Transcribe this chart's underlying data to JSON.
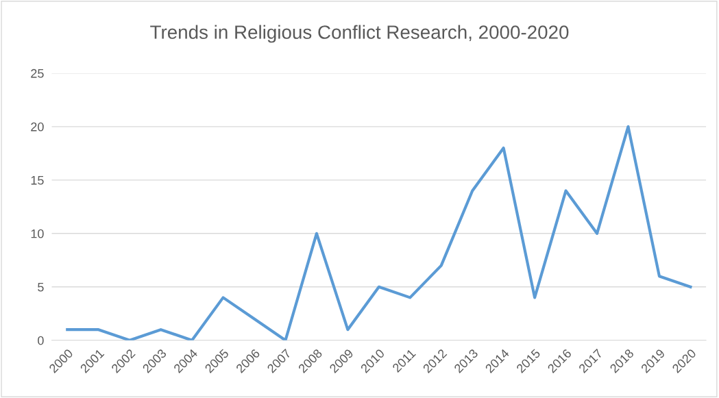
{
  "chart_data": {
    "type": "line",
    "title": "Trends in Religious Conflict Research, 2000-2020",
    "categories": [
      "2000",
      "2001",
      "2002",
      "2003",
      "2004",
      "2005",
      "2006",
      "2007",
      "2008",
      "2009",
      "2010",
      "2011",
      "2012",
      "2013",
      "2014",
      "2015",
      "2016",
      "2017",
      "2018",
      "2019",
      "2020"
    ],
    "series": [
      {
        "color": "#5b9bd5",
        "values": [
          1,
          1,
          0,
          1,
          0,
          4,
          2,
          0,
          10,
          1,
          5,
          4,
          7,
          14,
          18,
          4,
          14,
          10,
          20,
          6,
          5
        ]
      }
    ],
    "ylim": [
      0,
      25
    ],
    "yticks": [
      0,
      5,
      10,
      15,
      20,
      25
    ],
    "grid": "y",
    "marker": "none",
    "line_style": "solid"
  }
}
